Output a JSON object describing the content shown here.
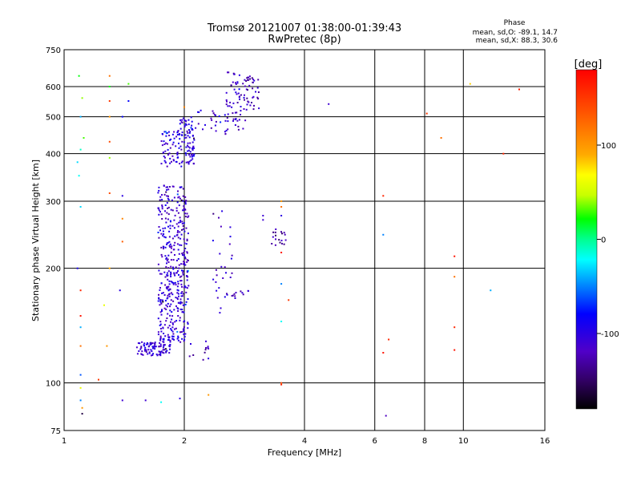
{
  "chart_data": {
    "type": "scatter",
    "title": "Tromsø 20121007 01:38:00-01:39:43",
    "subtitle": "RwPretec (8p)",
    "xlabel": "Frequency [MHz]",
    "ylabel": "Stationary phase Virtual Height [km]",
    "x_scale": "log",
    "y_scale": "log",
    "xlim": [
      1,
      16
    ],
    "ylim": [
      75,
      750
    ],
    "x_ticks": [
      1,
      2,
      4,
      6,
      8,
      10,
      16
    ],
    "y_ticks": [
      75,
      100,
      200,
      300,
      400,
      500,
      600,
      750
    ],
    "grid": true,
    "color_scale": {
      "label": "[deg]",
      "range": [
        -180,
        180
      ],
      "ticks": [
        100,
        0,
        -100
      ]
    },
    "stats": {
      "heading": "Phase",
      "line_o": "mean, sd,O: -89.1, 14.7",
      "line_x": "mean, sd,X: 88.3, 30.6"
    },
    "clusters": [
      {
        "x": [
          1.52,
          1.85
        ],
        "y": [
          118,
          128
        ],
        "phase": -110,
        "n": 90
      },
      {
        "x": [
          1.72,
          2.05
        ],
        "y": [
          128,
          200
        ],
        "phase": -105,
        "n": 230
      },
      {
        "x": [
          1.72,
          2.05
        ],
        "y": [
          200,
          330
        ],
        "phase": -110,
        "n": 200
      },
      {
        "x": [
          1.75,
          2.12
        ],
        "y": [
          370,
          460
        ],
        "phase": -105,
        "n": 120
      },
      {
        "x": [
          1.95,
          2.1
        ],
        "y": [
          460,
          500
        ],
        "phase": -105,
        "n": 25
      },
      {
        "x": [
          2.12,
          2.55
        ],
        "y": [
          450,
          520
        ],
        "phase": -110,
        "n": 25
      },
      {
        "x": [
          2.55,
          2.85
        ],
        "y": [
          460,
          660
        ],
        "phase": -115,
        "n": 60
      },
      {
        "x": [
          2.85,
          3.1
        ],
        "y": [
          520,
          640
        ],
        "phase": -120,
        "n": 35
      },
      {
        "x": [
          2.35,
          2.65
        ],
        "y": [
          150,
          290
        ],
        "phase": -110,
        "n": 30
      },
      {
        "x": [
          3.3,
          3.6
        ],
        "y": [
          230,
          255
        ],
        "phase": -130,
        "n": 18
      },
      {
        "x": [
          2.6,
          2.9
        ],
        "y": [
          165,
          175
        ],
        "phase": -115,
        "n": 10
      },
      {
        "x": [
          2.05,
          2.3
        ],
        "y": [
          115,
          132
        ],
        "phase": -120,
        "n": 12
      }
    ],
    "points": [
      {
        "x": 1.09,
        "y": 640,
        "phase": 20
      },
      {
        "x": 1.11,
        "y": 560,
        "phase": 40
      },
      {
        "x": 1.1,
        "y": 500,
        "phase": -40
      },
      {
        "x": 1.12,
        "y": 440,
        "phase": 30
      },
      {
        "x": 1.1,
        "y": 410,
        "phase": -10
      },
      {
        "x": 1.08,
        "y": 380,
        "phase": -30
      },
      {
        "x": 1.09,
        "y": 350,
        "phase": -20
      },
      {
        "x": 1.1,
        "y": 290,
        "phase": -30
      },
      {
        "x": 1.08,
        "y": 200,
        "phase": -90
      },
      {
        "x": 1.1,
        "y": 175,
        "phase": 160
      },
      {
        "x": 1.1,
        "y": 150,
        "phase": 170
      },
      {
        "x": 1.1,
        "y": 140,
        "phase": -40
      },
      {
        "x": 1.1,
        "y": 125,
        "phase": 120
      },
      {
        "x": 1.1,
        "y": 105,
        "phase": -60
      },
      {
        "x": 1.1,
        "y": 97,
        "phase": 60
      },
      {
        "x": 1.1,
        "y": 90,
        "phase": -50
      },
      {
        "x": 1.11,
        "y": 83,
        "phase": -160
      },
      {
        "x": 1.11,
        "y": 86,
        "phase": 100
      },
      {
        "x": 1.3,
        "y": 640,
        "phase": 120
      },
      {
        "x": 1.3,
        "y": 600,
        "phase": 20
      },
      {
        "x": 1.3,
        "y": 550,
        "phase": 150
      },
      {
        "x": 1.3,
        "y": 500,
        "phase": 100
      },
      {
        "x": 1.3,
        "y": 430,
        "phase": 140
      },
      {
        "x": 1.3,
        "y": 390,
        "phase": 40
      },
      {
        "x": 1.3,
        "y": 315,
        "phase": 140
      },
      {
        "x": 1.3,
        "y": 200,
        "phase": 90
      },
      {
        "x": 1.28,
        "y": 125,
        "phase": 100
      },
      {
        "x": 1.26,
        "y": 160,
        "phase": 60
      },
      {
        "x": 1.22,
        "y": 102,
        "phase": 150
      },
      {
        "x": 1.45,
        "y": 610,
        "phase": 30
      },
      {
        "x": 1.45,
        "y": 550,
        "phase": -80
      },
      {
        "x": 1.4,
        "y": 500,
        "phase": -80
      },
      {
        "x": 1.4,
        "y": 310,
        "phase": -100
      },
      {
        "x": 1.4,
        "y": 270,
        "phase": 110
      },
      {
        "x": 1.4,
        "y": 235,
        "phase": 130
      },
      {
        "x": 1.38,
        "y": 175,
        "phase": -100
      },
      {
        "x": 1.4,
        "y": 90,
        "phase": -110
      },
      {
        "x": 1.6,
        "y": 90,
        "phase": -110
      },
      {
        "x": 1.75,
        "y": 89,
        "phase": -20
      },
      {
        "x": 1.95,
        "y": 91,
        "phase": -100
      },
      {
        "x": 2.0,
        "y": 530,
        "phase": 110
      },
      {
        "x": 2.3,
        "y": 93,
        "phase": 100
      },
      {
        "x": 3.5,
        "y": 300,
        "phase": 100
      },
      {
        "x": 3.5,
        "y": 290,
        "phase": 120
      },
      {
        "x": 3.5,
        "y": 275,
        "phase": -100
      },
      {
        "x": 3.5,
        "y": 220,
        "phase": 170
      },
      {
        "x": 3.5,
        "y": 182,
        "phase": -50
      },
      {
        "x": 3.5,
        "y": 145,
        "phase": -20
      },
      {
        "x": 3.5,
        "y": 99,
        "phase": 160
      },
      {
        "x": 3.5,
        "y": 100,
        "phase": 140
      },
      {
        "x": 3.15,
        "y": 275,
        "phase": -110
      },
      {
        "x": 3.15,
        "y": 268,
        "phase": -110
      },
      {
        "x": 3.65,
        "y": 165,
        "phase": 150
      },
      {
        "x": 4.6,
        "y": 540,
        "phase": -110
      },
      {
        "x": 6.3,
        "y": 310,
        "phase": 160
      },
      {
        "x": 6.3,
        "y": 245,
        "phase": -50
      },
      {
        "x": 6.3,
        "y": 120,
        "phase": 170
      },
      {
        "x": 6.4,
        "y": 82,
        "phase": -120
      },
      {
        "x": 6.5,
        "y": 130,
        "phase": 160
      },
      {
        "x": 8.1,
        "y": 510,
        "phase": 150
      },
      {
        "x": 8.8,
        "y": 440,
        "phase": 120
      },
      {
        "x": 9.5,
        "y": 215,
        "phase": 170
      },
      {
        "x": 9.5,
        "y": 190,
        "phase": 120
      },
      {
        "x": 9.5,
        "y": 140,
        "phase": 160
      },
      {
        "x": 9.5,
        "y": 122,
        "phase": 170
      },
      {
        "x": 10.4,
        "y": 610,
        "phase": 80
      },
      {
        "x": 11.7,
        "y": 175,
        "phase": -40
      },
      {
        "x": 12.6,
        "y": 400,
        "phase": 160
      },
      {
        "x": 13.8,
        "y": 590,
        "phase": 165
      }
    ]
  }
}
